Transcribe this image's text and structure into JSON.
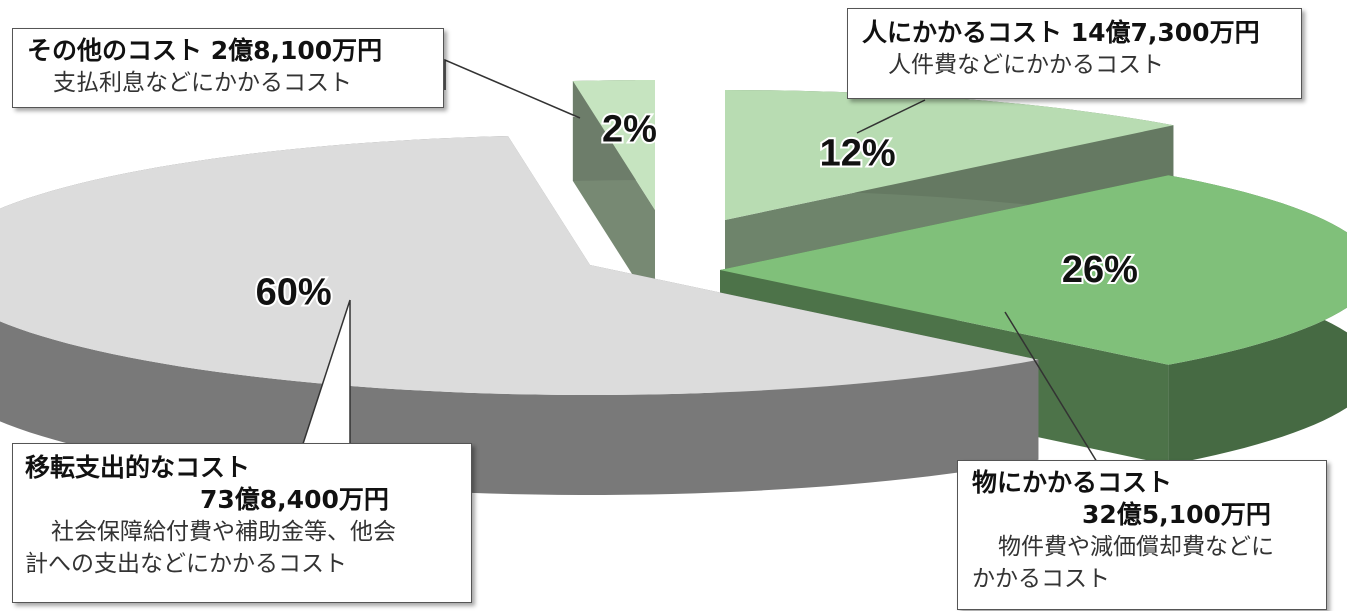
{
  "chart_data": {
    "type": "pie",
    "title": "",
    "slices": [
      {
        "label": "人にかかるコスト",
        "pct_label": "12%",
        "value": 12,
        "amount": "14億7,300万円",
        "description": "人件費などにかかるコスト",
        "color": "#b8dcb2"
      },
      {
        "label": "物にかかるコスト",
        "pct_label": "26%",
        "value": 26,
        "amount": "32億5,100万円",
        "description": "物件費や減価償却費などにかかるコスト",
        "color": "#80c07a"
      },
      {
        "label": "移転支出的なコスト",
        "pct_label": "60%",
        "value": 60,
        "amount": "73億8,400万円",
        "description": "社会保障給付費や補助金等、他会計への支出などにかかるコスト",
        "color": "#dcdcdc"
      },
      {
        "label": "その他のコスト",
        "pct_label": "2%",
        "value": 2,
        "amount": "2億8,100万円",
        "description": "支払利息などにかかるコスト",
        "color": "#c6e4c0"
      }
    ]
  },
  "callouts": {
    "other": {
      "title": "その他のコスト 2億8,100万円",
      "desc": "支払利息などにかかるコスト"
    },
    "people": {
      "title": "人にかかるコスト 14億7,300万円",
      "desc": "人件費などにかかるコスト"
    },
    "transfer": {
      "title": "移転支出的なコスト",
      "amount": "73億8,400万円",
      "desc1": "社会保障給付費や補助金等、他会",
      "desc2": "計への支出などにかかるコスト"
    },
    "goods": {
      "title": "物にかかるコスト",
      "amount": "32億5,100万円",
      "desc1": "物件費や減価償却費などに",
      "desc2": "かかるコスト"
    }
  }
}
